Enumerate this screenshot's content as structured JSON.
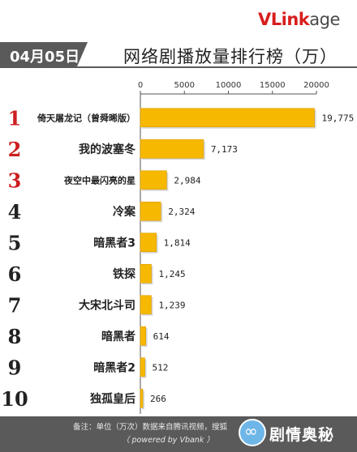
{
  "logo": {
    "v": "V",
    "link": "Link",
    "age": "age"
  },
  "date": "04月05日",
  "title": "网络剧播放量排行榜（万）",
  "footer": {
    "note_line1": "备注：单位（万次）数据来自腾讯视频，搜狐",
    "note_line2": "（ powered by Vbank ）"
  },
  "watermark": {
    "icon": "infinity-icon",
    "text": "剧情奥秘",
    "faint": "VLinkage"
  },
  "colors": {
    "bar": "#f6b800",
    "bar_edge": "#d99d00",
    "rank_red": "#cc1f1f",
    "rank_dark": "#222222",
    "axis": "#555555"
  },
  "chart_data": {
    "type": "bar",
    "orientation": "horizontal",
    "title": "网络剧播放量排行榜（万）",
    "xlim": [
      0,
      20000
    ],
    "xticks": [
      0,
      5000,
      10000,
      15000,
      20000
    ],
    "tick_labels": [
      "0",
      "5000",
      "10000",
      "15000",
      "20000"
    ],
    "gridlines": false,
    "ranks": [
      "1",
      "2",
      "3",
      "4",
      "5",
      "6",
      "7",
      "8",
      "9",
      "10"
    ],
    "categories": [
      "倚天屠龙记（曾舜晞版）",
      "我的波塞冬",
      "夜空中最闪亮的星",
      "冷案",
      "暗黑者3",
      "铁探",
      "大宋北斗司",
      "暗黑者",
      "暗黑者2",
      "独孤皇后"
    ],
    "values": [
      19775,
      7173,
      2984,
      2324,
      1814,
      1245,
      1239,
      614,
      512,
      266
    ],
    "value_labels": [
      "19,775",
      "7,173",
      "2,984",
      "2,324",
      "1,814",
      "1,245",
      "1,239",
      "614",
      "512",
      "266"
    ]
  }
}
